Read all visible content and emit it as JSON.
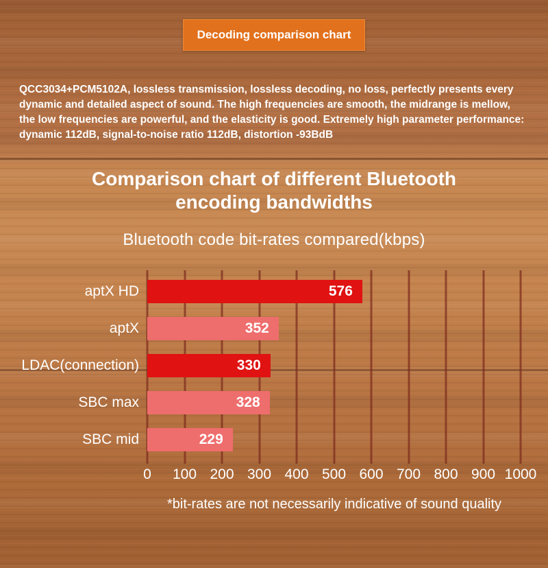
{
  "banner": {
    "label": "Decoding comparison chart"
  },
  "description": {
    "text": "QCC3034+PCM5102A, lossless transmission, lossless decoding, no loss, perfectly presents every dynamic and detailed aspect of sound. The high frequencies are smooth, the midrange is mellow, the low frequencies are powerful, and the elasticity is good. Extremely high parameter performance: dynamic 112dB, signal-to-noise ratio 112dB, distortion -93BdB"
  },
  "heading": {
    "text": "Comparison chart of different Bluetooth encoding bandwidths"
  },
  "chart_data": {
    "type": "bar",
    "orientation": "horizontal",
    "title": "Bluetooth code bit-rates compared(kbps)",
    "categories": [
      "aptX HD",
      "aptX",
      "LDAC(connection)",
      "SBC max",
      "SBC mid"
    ],
    "values": [
      576,
      352,
      330,
      328,
      229
    ],
    "bar_colors": [
      "#e01212",
      "#ee6d6d",
      "#e01212",
      "#ee6d6d",
      "#ee6d6d"
    ],
    "xlim": [
      0,
      1000
    ],
    "xticks": [
      0,
      100,
      200,
      300,
      400,
      500,
      600,
      700,
      800,
      900,
      1000
    ],
    "grid": true,
    "gridline_color": "#7d2b1d",
    "footnote": "*bit-rates are not necessarily indicative of sound quality"
  },
  "colors": {
    "banner_orange": "#e2711d",
    "bar_red": "#e01212",
    "bar_salmon": "#ee6d6d",
    "text": "#ffffff"
  }
}
